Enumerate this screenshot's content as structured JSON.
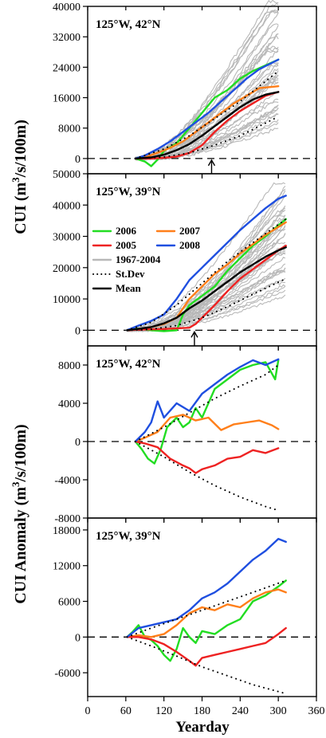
{
  "chart_data": [
    {
      "type": "line",
      "panel": "a",
      "panel_label": "125°W, 42°N",
      "ylabel": "",
      "xlabel": "",
      "xlim": [
        0,
        360
      ],
      "ylim": [
        -4000,
        40000
      ],
      "yticks": [
        "40000",
        "32000",
        "24000",
        "16000",
        "8000",
        "0"
      ],
      "ytick_values": [
        40000,
        32000,
        24000,
        16000,
        8000,
        0
      ],
      "arrow_yearday": 195,
      "background": {
        "name": "1967-2004",
        "count": 38,
        "start_x": 75,
        "end_x": 300,
        "final_min": 9000,
        "final_max": 39500
      },
      "series": [
        {
          "name": "2006",
          "color": "#22dd22",
          "x": [
            75,
            90,
            100,
            110,
            120,
            140,
            160,
            180,
            200,
            220,
            240,
            260,
            280,
            300
          ],
          "y": [
            0,
            -800,
            -2000,
            -300,
            2000,
            4000,
            8000,
            12000,
            16000,
            18000,
            21000,
            23000,
            24500,
            26000
          ]
        },
        {
          "name": "2007",
          "color": "#ff7f1a",
          "x": [
            75,
            90,
            110,
            130,
            150,
            170,
            190,
            210,
            230,
            250,
            270,
            300
          ],
          "y": [
            0,
            300,
            1500,
            2800,
            4500,
            7000,
            9500,
            12000,
            14500,
            16500,
            18500,
            19000
          ]
        },
        {
          "name": "2005",
          "color": "#ee2222",
          "x": [
            75,
            100,
            120,
            140,
            160,
            180,
            200,
            220,
            240,
            260,
            280,
            300
          ],
          "y": [
            0,
            0,
            200,
            500,
            1500,
            3500,
            7000,
            10000,
            12500,
            14500,
            16500,
            17500
          ]
        },
        {
          "name": "2008",
          "color": "#1f4fe0",
          "x": [
            75,
            90,
            110,
            130,
            150,
            170,
            190,
            210,
            230,
            250,
            270,
            300
          ],
          "y": [
            0,
            800,
            2500,
            4500,
            7000,
            9500,
            12000,
            15000,
            18000,
            21000,
            23500,
            26000
          ]
        },
        {
          "name": "St.Dev",
          "color": "#000000",
          "style": "dotted",
          "x": [
            75,
            120,
            160,
            200,
            240,
            270,
            300
          ],
          "y": [
            0,
            2500,
            6000,
            10500,
            15000,
            19000,
            23000
          ]
        },
        {
          "name": "St.Dev",
          "color": "#000000",
          "style": "dotted",
          "x": [
            75,
            120,
            160,
            200,
            240,
            270,
            300
          ],
          "y": [
            0,
            400,
            1500,
            3500,
            6000,
            8500,
            11000
          ]
        },
        {
          "name": "Mean",
          "color": "#000000",
          "x": [
            75,
            100,
            120,
            140,
            160,
            180,
            200,
            220,
            240,
            260,
            280,
            300
          ],
          "y": [
            0,
            300,
            1000,
            2200,
            3800,
            6000,
            8500,
            11000,
            13500,
            15500,
            16800,
            17500
          ]
        }
      ]
    },
    {
      "type": "line",
      "panel": "b",
      "panel_label": "125°W, 39°N",
      "ylabel": "",
      "xlabel": "",
      "xlim": [
        0,
        360
      ],
      "ylim": [
        -5000,
        50000
      ],
      "yticks": [
        "50000",
        "40000",
        "30000",
        "20000",
        "10000",
        "0"
      ],
      "ytick_values": [
        50000,
        40000,
        30000,
        20000,
        10000,
        0
      ],
      "arrow_yearday": 168,
      "background": {
        "name": "1967-2004",
        "count": 38,
        "start_x": 62,
        "end_x": 312,
        "final_min": 12000,
        "final_max": 48500
      },
      "series": [
        {
          "name": "2006",
          "color": "#22dd22",
          "x": [
            62,
            80,
            100,
            120,
            140,
            150,
            160,
            180,
            200,
            220,
            240,
            260,
            280,
            300,
            312
          ],
          "y": [
            0,
            500,
            0,
            -300,
            0,
            5000,
            8000,
            11000,
            14000,
            19000,
            23000,
            27000,
            30000,
            33500,
            35500
          ]
        },
        {
          "name": "2007",
          "color": "#ff7f1a",
          "x": [
            62,
            80,
            100,
            120,
            140,
            160,
            180,
            200,
            220,
            240,
            260,
            280,
            300,
            312
          ],
          "y": [
            0,
            400,
            1000,
            2000,
            4000,
            10000,
            14000,
            18000,
            21000,
            24500,
            27500,
            30500,
            33000,
            34500
          ]
        },
        {
          "name": "2005",
          "color": "#ee2222",
          "x": [
            62,
            80,
            100,
            120,
            140,
            160,
            170,
            180,
            200,
            220,
            240,
            260,
            280,
            300,
            312
          ],
          "y": [
            0,
            200,
            300,
            400,
            600,
            800,
            2000,
            4000,
            8000,
            12500,
            16500,
            19500,
            22500,
            25500,
            27000
          ]
        },
        {
          "name": "2008",
          "color": "#1f4fe0",
          "x": [
            62,
            80,
            100,
            120,
            140,
            160,
            180,
            200,
            220,
            240,
            260,
            280,
            300,
            312
          ],
          "y": [
            0,
            1500,
            3000,
            5000,
            10000,
            16000,
            20000,
            24000,
            28000,
            32000,
            35500,
            39000,
            42000,
            43000
          ]
        },
        {
          "name": "St.Dev",
          "color": "#000000",
          "style": "dotted",
          "x": [
            62,
            100,
            140,
            180,
            220,
            260,
            312
          ],
          "y": [
            0,
            2500,
            8000,
            15000,
            22000,
            28000,
            35500
          ]
        },
        {
          "name": "St.Dev",
          "color": "#000000",
          "style": "dotted",
          "x": [
            62,
            100,
            140,
            180,
            220,
            260,
            312
          ],
          "y": [
            0,
            300,
            1500,
            4000,
            7500,
            11500,
            16500
          ]
        },
        {
          "name": "Mean",
          "color": "#000000",
          "x": [
            62,
            100,
            120,
            140,
            160,
            180,
            200,
            220,
            240,
            260,
            280,
            300,
            312
          ],
          "y": [
            0,
            1000,
            2200,
            4000,
            7000,
            9500,
            12500,
            15500,
            18500,
            21000,
            23500,
            25500,
            26500
          ]
        }
      ]
    },
    {
      "type": "line",
      "panel": "c",
      "panel_label": "125°W, 42°N",
      "ylabel": "",
      "xlabel": "",
      "xlim": [
        0,
        360
      ],
      "ylim": [
        -8000,
        10000
      ],
      "yticks": [
        "8000",
        "4000",
        "0",
        "-4000",
        "-8000"
      ],
      "ytick_values": [
        8000,
        4000,
        0,
        -4000,
        -8000
      ],
      "series": [
        {
          "name": "2006",
          "color": "#22dd22",
          "x": [
            75,
            85,
            95,
            105,
            115,
            125,
            140,
            150,
            160,
            170,
            180,
            200,
            220,
            240,
            260,
            280,
            295,
            300
          ],
          "y": [
            0,
            -800,
            -1800,
            -2300,
            -800,
            1500,
            2500,
            1500,
            2000,
            3500,
            2500,
            5500,
            6500,
            7500,
            8000,
            8300,
            6500,
            8500
          ]
        },
        {
          "name": "2007",
          "color": "#ff7f1a",
          "x": [
            75,
            90,
            110,
            130,
            150,
            170,
            190,
            210,
            230,
            250,
            270,
            290,
            300
          ],
          "y": [
            0,
            400,
            1000,
            2500,
            2800,
            2200,
            2500,
            1200,
            1800,
            2000,
            2200,
            1700,
            1300
          ]
        },
        {
          "name": "2005",
          "color": "#ee2222",
          "x": [
            75,
            90,
            110,
            130,
            150,
            160,
            170,
            180,
            200,
            220,
            240,
            260,
            280,
            300
          ],
          "y": [
            0,
            -200,
            -600,
            -1800,
            -2500,
            -2800,
            -3300,
            -2900,
            -2500,
            -1800,
            -1600,
            -900,
            -1200,
            -700
          ]
        },
        {
          "name": "2008",
          "color": "#1f4fe0",
          "x": [
            75,
            90,
            100,
            110,
            120,
            140,
            160,
            180,
            200,
            220,
            240,
            260,
            280,
            300
          ],
          "y": [
            0,
            1000,
            2000,
            4200,
            2500,
            4000,
            3200,
            5000,
            6000,
            7000,
            7800,
            8500,
            8000,
            8600
          ]
        },
        {
          "name": "St.Dev",
          "color": "#000000",
          "style": "dotted",
          "x": [
            75,
            120,
            160,
            200,
            240,
            280,
            300
          ],
          "y": [
            0,
            1500,
            3000,
            4500,
            5800,
            7000,
            8000
          ]
        },
        {
          "name": "St.Dev",
          "color": "#000000",
          "style": "dotted",
          "x": [
            75,
            120,
            160,
            200,
            240,
            280,
            300
          ],
          "y": [
            0,
            -1600,
            -3200,
            -4600,
            -5800,
            -6800,
            -7200
          ]
        }
      ]
    },
    {
      "type": "line",
      "panel": "d",
      "panel_label": "125°W, 39°N",
      "ylabel": "",
      "xlabel": "Yearday",
      "xlim": [
        0,
        360
      ],
      "ylim": [
        -10000,
        20000
      ],
      "yticks": [
        "18000",
        "12000",
        "6000",
        "0",
        "-6000"
      ],
      "ytick_values": [
        18000,
        12000,
        6000,
        0,
        -6000
      ],
      "xticks": [
        "0",
        "60",
        "120",
        "180",
        "240",
        "300",
        "360"
      ],
      "xtick_values": [
        0,
        60,
        120,
        180,
        240,
        300,
        360
      ],
      "series": [
        {
          "name": "2006",
          "color": "#22dd22",
          "x": [
            62,
            70,
            80,
            90,
            100,
            110,
            120,
            130,
            140,
            150,
            160,
            170,
            180,
            200,
            220,
            240,
            260,
            280,
            300,
            312
          ],
          "y": [
            0,
            800,
            2000,
            0,
            -500,
            -1500,
            -3000,
            -4000,
            -2000,
            1500,
            0,
            -1000,
            1000,
            500,
            2000,
            3000,
            6000,
            7000,
            8500,
            9500
          ]
        },
        {
          "name": "2007",
          "color": "#ff7f1a",
          "x": [
            62,
            80,
            100,
            120,
            140,
            160,
            180,
            200,
            220,
            240,
            260,
            280,
            300,
            312
          ],
          "y": [
            0,
            300,
            0,
            500,
            2000,
            4000,
            5000,
            4500,
            5500,
            5000,
            6500,
            7500,
            8000,
            7500
          ]
        },
        {
          "name": "2005",
          "color": "#ee2222",
          "x": [
            62,
            80,
            100,
            120,
            140,
            160,
            170,
            180,
            200,
            220,
            240,
            260,
            280,
            300,
            312
          ],
          "y": [
            0,
            0,
            -400,
            -1200,
            -2500,
            -4000,
            -4800,
            -3500,
            -3000,
            -2500,
            -2000,
            -1500,
            -1000,
            500,
            1500
          ]
        },
        {
          "name": "2008",
          "color": "#1f4fe0",
          "x": [
            62,
            80,
            100,
            120,
            140,
            160,
            180,
            200,
            220,
            240,
            260,
            280,
            300,
            312
          ],
          "y": [
            0,
            1500,
            2000,
            2500,
            3000,
            4500,
            6500,
            7500,
            9000,
            11000,
            13000,
            14500,
            16500,
            16000
          ]
        },
        {
          "name": "St.Dev",
          "color": "#000000",
          "style": "dotted",
          "x": [
            62,
            100,
            140,
            180,
            220,
            260,
            312
          ],
          "y": [
            0,
            1500,
            3000,
            4500,
            6000,
            7500,
            9500
          ]
        },
        {
          "name": "St.Dev",
          "color": "#000000",
          "style": "dotted",
          "x": [
            62,
            100,
            140,
            180,
            220,
            260,
            312
          ],
          "y": [
            0,
            -1500,
            -3200,
            -5000,
            -6500,
            -8000,
            -9500
          ]
        }
      ]
    }
  ],
  "ylabels": {
    "upper": "CUI (m3/s/100m)",
    "lower": "CUI Anomaly (m3/s/100m)"
  },
  "legend": {
    "items": [
      {
        "label": "2006",
        "color": "#22dd22",
        "style": "solid"
      },
      {
        "label": "2007",
        "color": "#ff7f1a",
        "style": "solid"
      },
      {
        "label": "2005",
        "color": "#ee2222",
        "style": "solid"
      },
      {
        "label": "2008",
        "color": "#1f4fe0",
        "style": "solid"
      },
      {
        "label": "1967-2004",
        "color": "#b8b8b8",
        "style": "solid"
      },
      {
        "label": "St.Dev",
        "color": "#000000",
        "style": "dotted"
      },
      {
        "label": "Mean",
        "color": "#000000",
        "style": "solid"
      }
    ]
  }
}
